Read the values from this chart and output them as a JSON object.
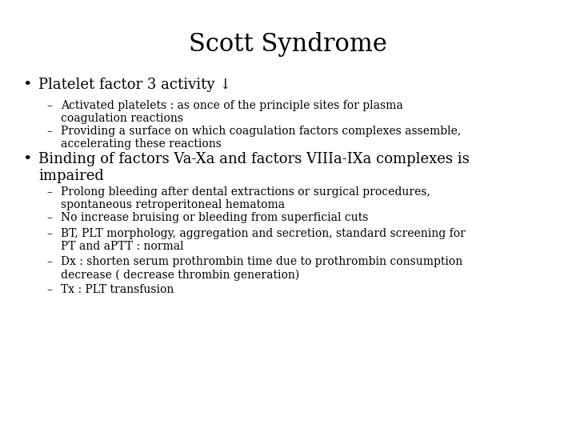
{
  "title": "Scott Syndrome",
  "title_fontsize": 22,
  "background_color": "#ffffff",
  "text_color": "#000000",
  "bullet1": "Platelet factor 3 activity ↓",
  "bullet1_fontsize": 13,
  "sub1_1": "Activated platelets : as once of the principle sites for plasma\ncoagulation reactions",
  "sub1_2": "Providing a surface on which coagulation factors complexes assemble,\naccelerating these reactions",
  "bullet2_line1": "Binding of factors Va-Xa and factors VIIIa-IXa complexes is",
  "bullet2_line2": "impaired",
  "bullet2_fontsize": 13,
  "sub2_1": "Prolong bleeding after dental extractions or surgical procedures,\nspontaneous retroperitoneal hematoma",
  "sub2_2": "No increase bruising or bleeding from superficial cuts",
  "sub2_3": "BT, PLT morphology, aggregation and secretion, standard screening for\nPT and aPTT : normal",
  "sub2_4": "Dx : shorten serum prothrombin time due to prothrombin consumption\ndecrease ( decrease thrombin generation)",
  "sub2_5": "Tx : PLT transfusion",
  "sub_fontsize": 10,
  "font_family": "serif"
}
